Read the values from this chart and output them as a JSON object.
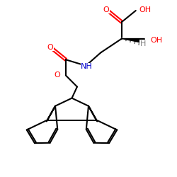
{
  "bg": "#ffffff",
  "bc": "#000000",
  "oc": "#ff0000",
  "nc": "#0000cc",
  "hc": "#808080",
  "lw": 1.5,
  "fs": 8.0,
  "xlim": [
    0,
    10
  ],
  "ylim": [
    0,
    10
  ]
}
